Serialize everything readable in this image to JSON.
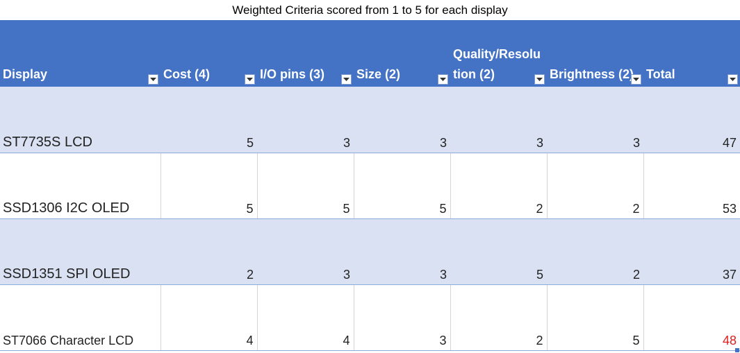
{
  "title": "Weighted Criteria scored from 1 to 5 for each display",
  "columns": [
    {
      "label": "Display"
    },
    {
      "label": "Cost (4)"
    },
    {
      "label": "I/O pins (3)"
    },
    {
      "label": "Size (2)"
    },
    {
      "label": "Quality/Resolu tion (2)"
    },
    {
      "label": "Brightness (2)"
    },
    {
      "label": "Total"
    }
  ],
  "rows": [
    {
      "display": "ST7735S LCD",
      "cost": "5",
      "io_pins": "3",
      "size": "3",
      "quality": "3",
      "brightness": "3",
      "total": "47"
    },
    {
      "display": "SSD1306 I2C OLED",
      "cost": "5",
      "io_pins": "5",
      "size": "5",
      "quality": "2",
      "brightness": "2",
      "total": "53"
    },
    {
      "display": "SSD1351 SPI OLED",
      "cost": "2",
      "io_pins": "3",
      "size": "3",
      "quality": "5",
      "brightness": "2",
      "total": "37"
    },
    {
      "display": "ST7066 Character LCD",
      "cost": "4",
      "io_pins": "4",
      "size": "3",
      "quality": "2",
      "brightness": "5",
      "total": "48"
    }
  ],
  "colors": {
    "header_bg": "#4472c4",
    "band_bg": "#d9e1f2",
    "highlight_total": "#e02020"
  },
  "icons": {
    "filter": "filter-dropdown-icon"
  }
}
